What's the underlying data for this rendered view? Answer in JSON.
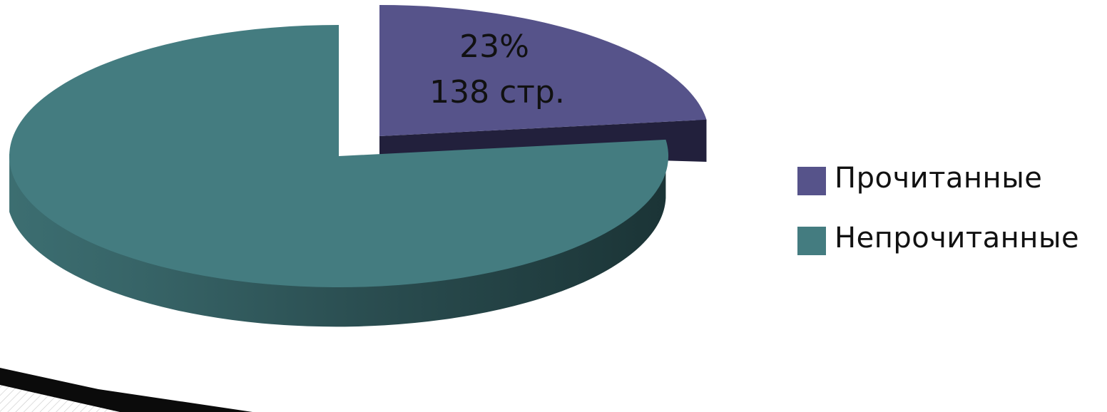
{
  "chart_data": {
    "type": "pie",
    "title": "",
    "series": [
      {
        "categories": [
          "Прочитанные",
          "Непрочитанные"
        ],
        "values": [
          23,
          77
        ],
        "colors": [
          "#56538A",
          "#447C80"
        ]
      }
    ],
    "data_labels": {
      "slice_0_percent": "23%",
      "slice_0_pages": "138 стр."
    },
    "legend": {
      "placement": "right",
      "items": [
        {
          "label": "Прочитанные",
          "color": "#56538A"
        },
        {
          "label": "Непрочитанные",
          "color": "#447C80"
        }
      ]
    },
    "style": "3d-exploded"
  }
}
